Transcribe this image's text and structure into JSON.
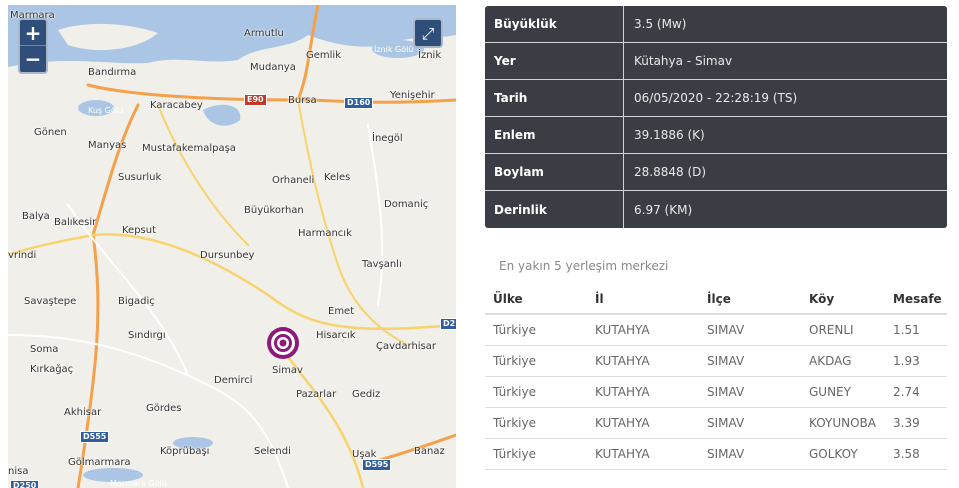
{
  "map": {
    "zoom_in": "+",
    "zoom_out": "−",
    "fullscreen_icon": "expand-icon",
    "places": [
      "Marmara",
      "Armutlu",
      "Gemlik",
      "İznik Gölü",
      "İznik",
      "Bandırma",
      "Mudanya",
      "Yenişehir",
      "Kuş Gölü",
      "Karacabey",
      "Bursa",
      "İnegöl",
      "Gönen",
      "Manyas",
      "Mustafakemalpaşa",
      "Orhaneli",
      "Keles",
      "Susurluk",
      "Domaniç",
      "Balya",
      "Büyükorhan",
      "Balıkesir",
      "Kepsut",
      "Harmancık",
      "Dursunbey",
      "Tavşanlı",
      "vrindi",
      "Savaştepe",
      "Bigadiç",
      "Emet",
      "Hisarcık",
      "Sındırgı",
      "Çavdarhisar",
      "Soma",
      "Kırkağaç",
      "Simav",
      "Demirci",
      "Pazarlar",
      "Gediz",
      "Akhisar",
      "Gördes",
      "Köprübaşı",
      "Selendi",
      "Uşak",
      "Banaz",
      "Gölmarmara",
      "Marmara Gölü",
      "nisa"
    ],
    "roads": [
      "E90",
      "D160",
      "D555",
      "D595",
      "D250",
      "D2"
    ],
    "epicenter_color": "#8b1a7a"
  },
  "info": [
    {
      "label": "Büyüklük",
      "value": "3.5 (Mw)"
    },
    {
      "label": "Yer",
      "value": "Kütahya - Simav"
    },
    {
      "label": "Tarih",
      "value": "06/05/2020 - 22:28:19 (TS)"
    },
    {
      "label": "Enlem",
      "value": "39.1886 (K)"
    },
    {
      "label": "Boylam",
      "value": "28.8848 (D)"
    },
    {
      "label": "Derinlik",
      "value": "6.97 (KM)"
    }
  ],
  "nearest": {
    "title": "En yakın 5 yerleşim merkezi",
    "headers": [
      "Ülke",
      "İl",
      "İlçe",
      "Köy",
      "Mesafe"
    ],
    "rows": [
      [
        "Türkiye",
        "KUTAHYA",
        "SIMAV",
        "ORENLI",
        "1.51"
      ],
      [
        "Türkiye",
        "KUTAHYA",
        "SIMAV",
        "AKDAG",
        "1.93"
      ],
      [
        "Türkiye",
        "KUTAHYA",
        "SIMAV",
        "GUNEY",
        "2.74"
      ],
      [
        "Türkiye",
        "KUTAHYA",
        "SIMAV",
        "KOYUNOBA",
        "3.39"
      ],
      [
        "Türkiye",
        "KUTAHYA",
        "SIMAV",
        "GOLKOY",
        "3.58"
      ]
    ]
  }
}
